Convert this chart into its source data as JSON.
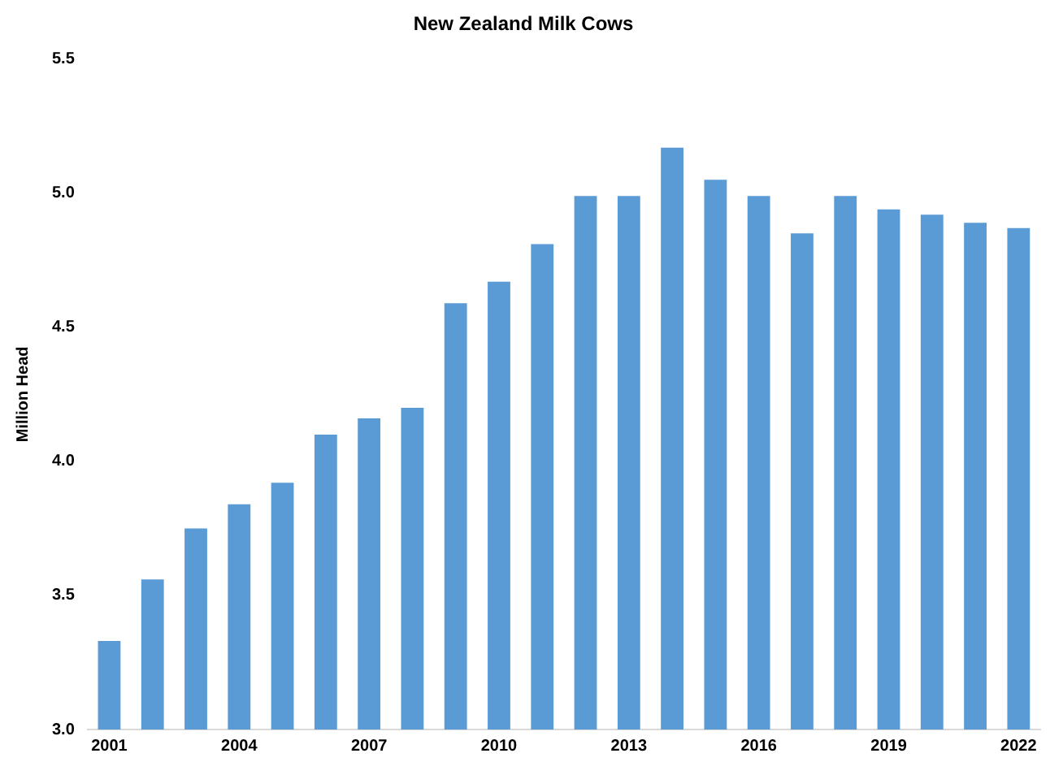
{
  "chart_data": {
    "type": "bar",
    "title": "New Zealand Milk Cows",
    "ylabel": "Million Head",
    "categories": [
      "2001",
      null,
      null,
      "2004",
      null,
      null,
      "2007",
      null,
      null,
      "2010",
      null,
      null,
      "2013",
      null,
      null,
      "2016",
      null,
      null,
      "2019",
      null,
      null,
      "2022"
    ],
    "values": [
      3.33,
      3.56,
      3.75,
      3.84,
      3.92,
      4.1,
      4.16,
      4.2,
      4.59,
      4.67,
      4.81,
      4.99,
      4.99,
      5.17,
      5.05,
      4.99,
      4.85,
      4.99,
      4.94,
      4.92,
      4.89,
      4.87
    ],
    "color": "#5b9bd5",
    "ylim": [
      3.0,
      5.5
    ],
    "yticks": [
      {
        "value": 3.0,
        "label": "3.0"
      },
      {
        "value": 3.5,
        "label": "3.5"
      },
      {
        "value": 4.0,
        "label": "4.0"
      },
      {
        "value": 4.5,
        "label": "4.5"
      },
      {
        "value": 5.0,
        "label": "5.0"
      },
      {
        "value": 5.5,
        "label": "5.5"
      }
    ],
    "grid": false,
    "legend": false
  }
}
